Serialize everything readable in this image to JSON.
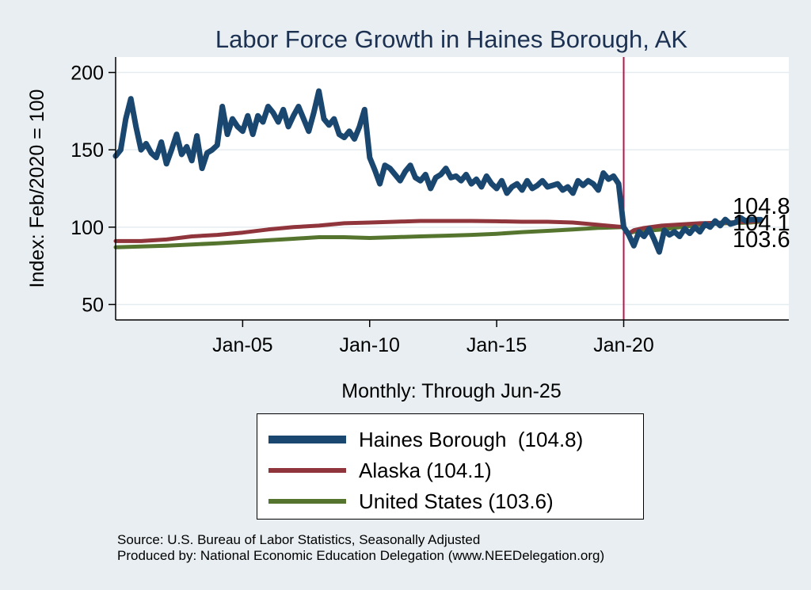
{
  "chart_data": {
    "type": "line",
    "title": "Labor Force Growth in Haines Borough, AK",
    "xlabel": "Monthly: Through Jun-25",
    "ylabel": "Index: Feb/2020 = 100",
    "xlim": [
      2000.0,
      2026.5
    ],
    "ylim": [
      40,
      210
    ],
    "yticks": [
      50,
      100,
      150,
      200
    ],
    "xticks": [
      {
        "label": "Jan-05",
        "x": 2005.0
      },
      {
        "label": "Jan-10",
        "x": 2010.0
      },
      {
        "label": "Jan-15",
        "x": 2015.0
      },
      {
        "label": "Jan-20",
        "x": 2020.0
      }
    ],
    "reference_line": {
      "x": 2020.0,
      "color": "#b8164b"
    },
    "grid": true,
    "legend_position": "bottom",
    "end_labels": [
      "104.8",
      "104.1",
      "103.6"
    ],
    "series": [
      {
        "name": "Haines Borough",
        "legend": "Haines Borough  (104.8)",
        "color": "#1a476f",
        "width": 7,
        "x": [
          2000.0,
          2000.2,
          2000.4,
          2000.6,
          2000.8,
          2001.0,
          2001.2,
          2001.4,
          2001.6,
          2001.8,
          2002.0,
          2002.2,
          2002.4,
          2002.6,
          2002.8,
          2003.0,
          2003.2,
          2003.4,
          2003.6,
          2003.8,
          2004.0,
          2004.2,
          2004.4,
          2004.6,
          2004.8,
          2005.0,
          2005.2,
          2005.4,
          2005.6,
          2005.8,
          2006.0,
          2006.2,
          2006.4,
          2006.6,
          2006.8,
          2007.0,
          2007.2,
          2007.4,
          2007.6,
          2007.8,
          2008.0,
          2008.2,
          2008.4,
          2008.6,
          2008.8,
          2009.0,
          2009.2,
          2009.4,
          2009.6,
          2009.8,
          2010.0,
          2010.2,
          2010.4,
          2010.6,
          2010.8,
          2011.0,
          2011.2,
          2011.4,
          2011.6,
          2011.8,
          2012.0,
          2012.2,
          2012.4,
          2012.6,
          2012.8,
          2013.0,
          2013.2,
          2013.4,
          2013.6,
          2013.8,
          2014.0,
          2014.2,
          2014.4,
          2014.6,
          2014.8,
          2015.0,
          2015.2,
          2015.4,
          2015.6,
          2015.8,
          2016.0,
          2016.2,
          2016.4,
          2016.6,
          2016.8,
          2017.0,
          2017.2,
          2017.4,
          2017.6,
          2017.8,
          2018.0,
          2018.2,
          2018.4,
          2018.6,
          2018.8,
          2019.0,
          2019.2,
          2019.4,
          2019.6,
          2019.8,
          2020.0,
          2020.2,
          2020.4,
          2020.6,
          2020.8,
          2021.0,
          2021.2,
          2021.4,
          2021.6,
          2021.8,
          2022.0,
          2022.2,
          2022.4,
          2022.6,
          2022.8,
          2023.0,
          2023.2,
          2023.4,
          2023.6,
          2023.8,
          2024.0,
          2024.2,
          2024.4,
          2024.6,
          2024.8,
          2025.0,
          2025.2,
          2025.4
        ],
        "y": [
          146,
          150,
          170,
          183,
          165,
          150,
          154,
          148,
          145,
          155,
          141,
          150,
          160,
          147,
          152,
          143,
          159,
          138,
          148,
          150,
          153,
          178,
          160,
          170,
          165,
          162,
          172,
          160,
          172,
          168,
          178,
          174,
          168,
          176,
          165,
          172,
          178,
          170,
          162,
          174,
          188,
          170,
          166,
          170,
          160,
          158,
          162,
          157,
          165,
          176,
          145,
          137,
          128,
          140,
          138,
          134,
          130,
          136,
          140,
          132,
          130,
          134,
          125,
          132,
          134,
          138,
          132,
          133,
          130,
          134,
          128,
          131,
          126,
          133,
          128,
          125,
          130,
          122,
          126,
          128,
          124,
          130,
          125,
          127,
          130,
          126,
          127,
          128,
          124,
          126,
          122,
          130,
          127,
          130,
          128,
          124,
          135,
          131,
          133,
          128,
          100,
          95,
          88,
          97,
          94,
          99,
          92,
          84,
          98,
          95,
          97,
          94,
          99,
          96,
          100,
          97,
          102,
          100,
          104,
          101,
          105,
          102,
          103,
          106,
          104,
          105,
          104.8,
          104.8
        ],
        "mark": "haines"
      },
      {
        "name": "Alaska",
        "legend": "Alaska (104.1)",
        "color": "#90353b",
        "width": 5,
        "x": [
          2000.0,
          2001.0,
          2002.0,
          2003.0,
          2004.0,
          2005.0,
          2006.0,
          2007.0,
          2008.0,
          2009.0,
          2010.0,
          2011.0,
          2012.0,
          2013.0,
          2014.0,
          2015.0,
          2016.0,
          2017.0,
          2018.0,
          2019.0,
          2020.0,
          2020.2,
          2020.4,
          2020.8,
          2021.5,
          2022.0,
          2023.0,
          2024.0,
          2025.0,
          2025.4
        ],
        "y": [
          91,
          91,
          92,
          94,
          95,
          96.5,
          98.5,
          100,
          101,
          102.5,
          103,
          103.5,
          104,
          104,
          104,
          103.8,
          103.5,
          103.5,
          103,
          101.5,
          100,
          96,
          98,
          99.5,
          101,
          101.5,
          102.5,
          103,
          103.5,
          104.1
        ],
        "mark": "alaska"
      },
      {
        "name": "United States",
        "legend": "United States (103.6)",
        "color": "#55752f",
        "width": 5,
        "x": [
          2000.0,
          2001.0,
          2002.0,
          2003.0,
          2004.0,
          2005.0,
          2006.0,
          2007.0,
          2008.0,
          2009.0,
          2010.0,
          2011.0,
          2012.0,
          2013.0,
          2014.0,
          2015.0,
          2016.0,
          2017.0,
          2018.0,
          2019.0,
          2020.0,
          2020.2,
          2020.4,
          2020.8,
          2021.5,
          2022.0,
          2023.0,
          2024.0,
          2025.0,
          2025.4
        ],
        "y": [
          87,
          87.5,
          88,
          88.8,
          89.5,
          90.5,
          91.5,
          92.5,
          93.5,
          93.5,
          93,
          93.5,
          94,
          94.5,
          95,
          95.7,
          96.8,
          97.6,
          98.5,
          99.5,
          100,
          96,
          97,
          97.5,
          98.5,
          99.5,
          101.5,
          102.5,
          103,
          103.6
        ],
        "mark": "us"
      }
    ]
  },
  "footer": {
    "source": "Source: U.S. Bureau of Labor Statistics, Seasonally Adjusted",
    "produced": "Produced by: National Economic Education Delegation (www.NEEDelegation.org)"
  }
}
